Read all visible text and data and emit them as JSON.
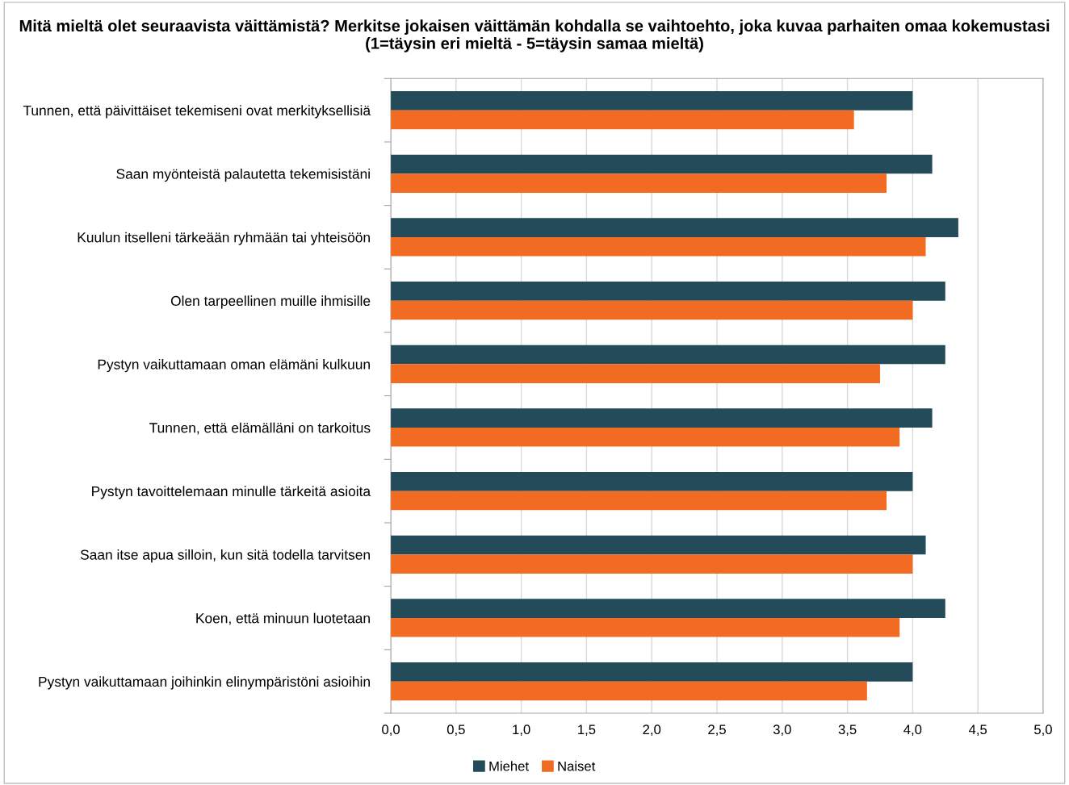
{
  "chart_data": {
    "type": "bar",
    "orientation": "horizontal",
    "title": "Mitä mieltä olet seuraavista väittämistä? Merkitse jokaisen väittämän kohdalla se vaihtoehto, joka kuvaa parhaiten omaa kokemustasi (1=täysin eri mieltä - 5=täysin samaa mieltä)",
    "categories": [
      "Tunnen, että päivittäiset tekemiseni ovat merkityksellisiä",
      "Saan myönteistä palautetta tekemisistäni",
      "Kuulun itselleni tärkeään ryhmään tai yhteisöön",
      "Olen tarpeellinen muille ihmisille",
      "Pystyn vaikuttamaan oman elämäni kulkuun",
      "Tunnen, että elämälläni on tarkoitus",
      "Pystyn tavoittelemaan minulle tärkeitä asioita",
      "Saan itse apua silloin, kun sitä todella tarvitsen",
      "Koen, että minuun luotetaan",
      "Pystyn vaikuttamaan joihinkin elinympäristöni asioihin"
    ],
    "series": [
      {
        "name": "Miehet",
        "color": "#234b5a",
        "values": [
          4.0,
          4.15,
          4.35,
          4.25,
          4.25,
          4.15,
          4.0,
          4.1,
          4.25,
          4.0
        ]
      },
      {
        "name": "Naiset",
        "color": "#f26b22",
        "values": [
          3.55,
          3.8,
          4.1,
          4.0,
          3.75,
          3.9,
          3.8,
          4.0,
          3.9,
          3.65
        ]
      }
    ],
    "xlim": [
      0,
      5
    ],
    "xticks": [
      {
        "value": 0,
        "label": "0,0"
      },
      {
        "value": 0.5,
        "label": "0,5"
      },
      {
        "value": 1,
        "label": "1,0"
      },
      {
        "value": 1.5,
        "label": "1,5"
      },
      {
        "value": 2,
        "label": "2,0"
      },
      {
        "value": 2.5,
        "label": "2,5"
      },
      {
        "value": 3,
        "label": "3,0"
      },
      {
        "value": 3.5,
        "label": "3,5"
      },
      {
        "value": 4,
        "label": "4,0"
      },
      {
        "value": 4.5,
        "label": "4,5"
      },
      {
        "value": 5,
        "label": "5,0"
      }
    ],
    "grid": "x",
    "legend": "bottom"
  }
}
